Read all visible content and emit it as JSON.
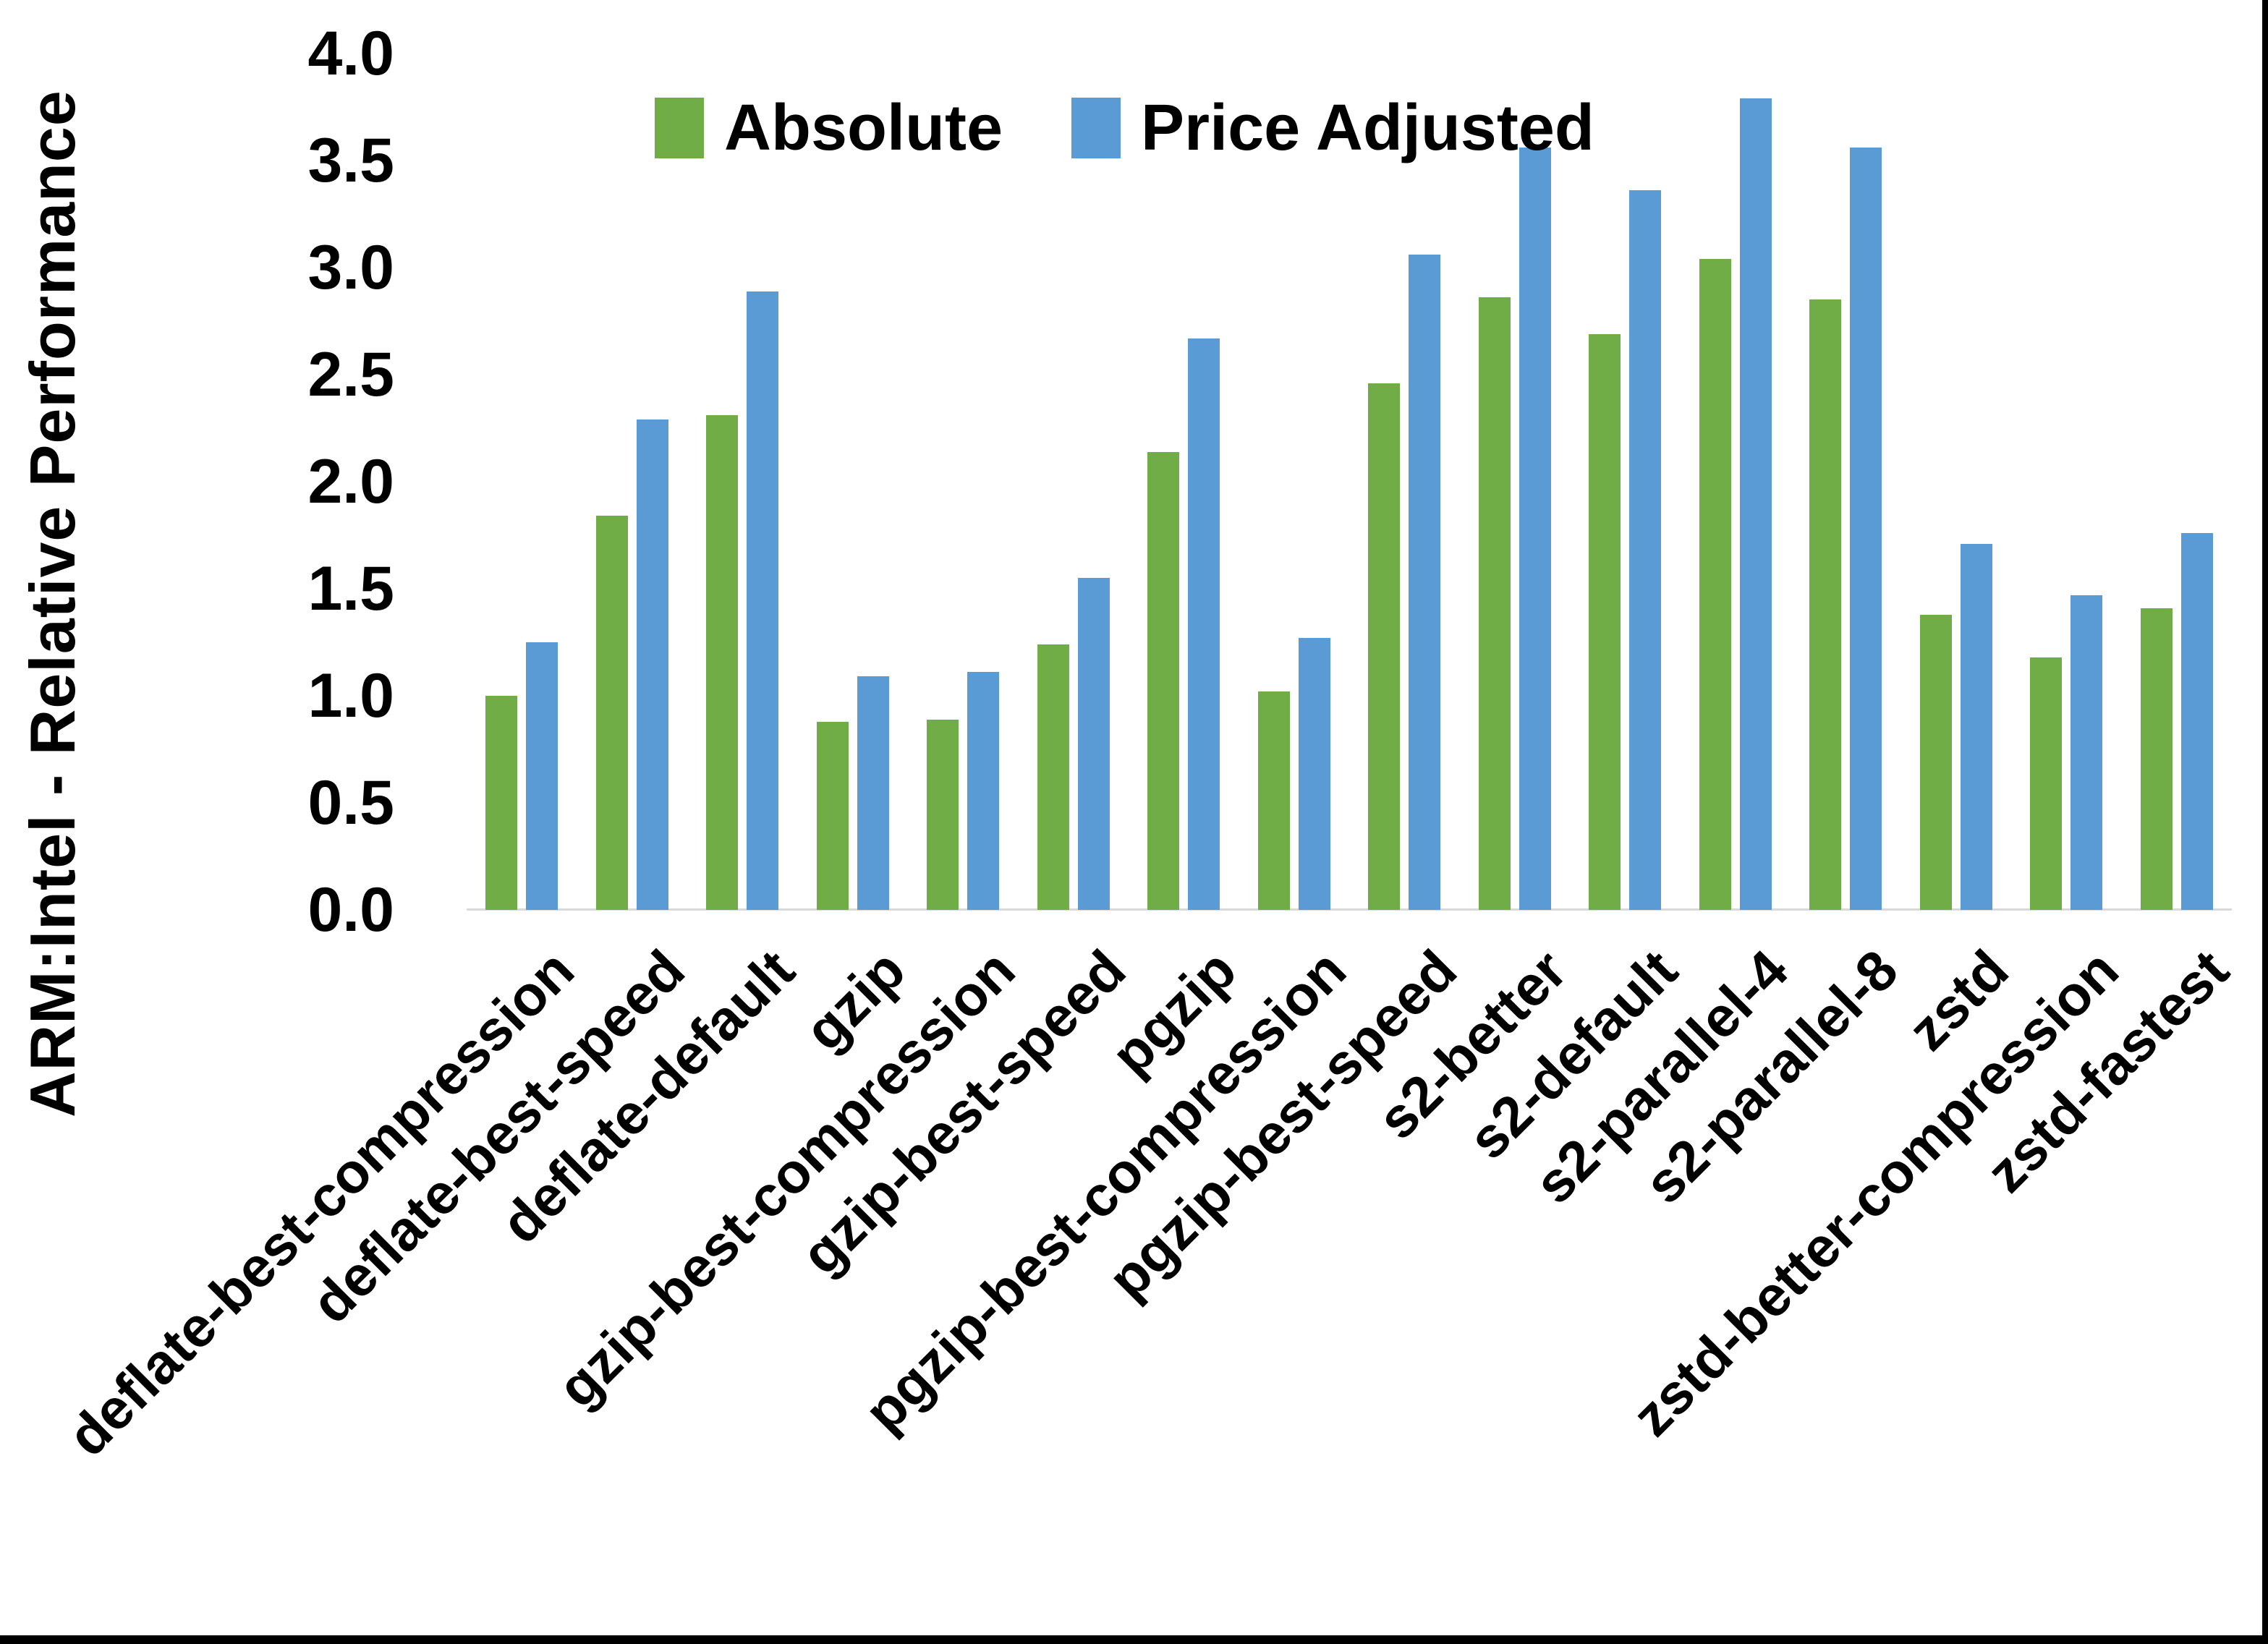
{
  "y_axis": {
    "title": "ARM:Intel - Relative Performance",
    "ticks": [
      "4.0",
      "3.5",
      "3.0",
      "2.5",
      "2.0",
      "1.5",
      "1.0",
      "0.5",
      "0.0"
    ],
    "min": 0.0,
    "max": 4.0
  },
  "legend": {
    "items": [
      {
        "label": "Absolute",
        "color": "#70AD47"
      },
      {
        "label": "Price Adjusted",
        "color": "#5B9BD5"
      }
    ]
  },
  "colors": {
    "absolute_green": "#70AD47",
    "price_adjusted_blue": "#5B9BD5",
    "axis_line": "#D9D9D9",
    "text": "#000000",
    "background": "#FFFFFF",
    "frame_border": "#000000"
  },
  "chart_data": {
    "type": "bar",
    "title": "",
    "xlabel": "",
    "ylabel": "ARM:Intel - Relative Performance",
    "ylim": [
      0.0,
      4.0
    ],
    "ytick_step": 0.5,
    "grid": false,
    "legend_position": "top-center",
    "categories": [
      "deflate-best-compression",
      "deflate-best-speed",
      "deflate-default",
      "gzip",
      "gzip-best-compression",
      "gzip-best-speed",
      "pgzip",
      "pgzip-best-compression",
      "pgzip-best-speed",
      "s2-better",
      "s2-default",
      "s2-parallel-4",
      "s2-parallel-8",
      "zstd",
      "zstd-better-compression",
      "zstd-fastest"
    ],
    "series": [
      {
        "name": "Absolute",
        "color": "#70AD47",
        "values": [
          1.0,
          1.84,
          2.31,
          0.88,
          0.89,
          1.24,
          2.14,
          1.02,
          2.46,
          2.86,
          2.69,
          3.04,
          2.85,
          1.38,
          1.18,
          1.41
        ]
      },
      {
        "name": "Price Adjusted",
        "color": "#5B9BD5",
        "values": [
          1.25,
          2.29,
          2.89,
          1.09,
          1.11,
          1.55,
          2.67,
          1.27,
          3.06,
          3.56,
          3.36,
          3.79,
          3.56,
          1.71,
          1.47,
          1.76
        ]
      }
    ]
  }
}
